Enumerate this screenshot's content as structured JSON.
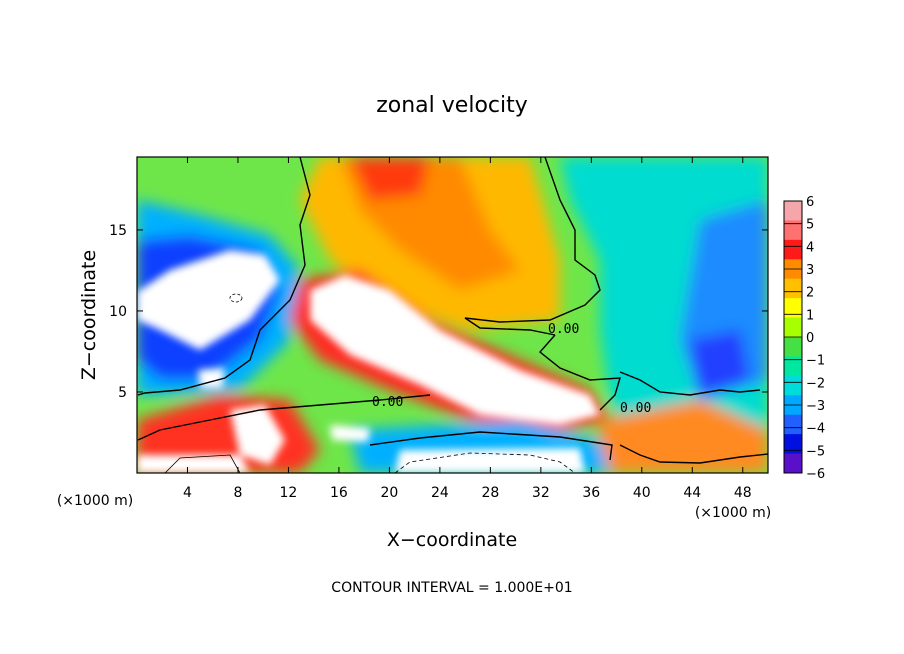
{
  "chart_data": {
    "type": "heatmap",
    "title": "zonal velocity",
    "xlabel": "X−coordinate",
    "ylabel": "Z−coordinate",
    "x_unit_label": "(×1000 m)",
    "x_unit_label_right": "(×1000 m)",
    "xlim": [
      0,
      50
    ],
    "ylim": [
      0,
      19.5
    ],
    "x_ticks": [
      4,
      8,
      12,
      16,
      20,
      24,
      28,
      32,
      36,
      40,
      44,
      48
    ],
    "y_ticks": [
      5,
      10,
      15
    ],
    "colorbar": {
      "range": [
        -6,
        6
      ],
      "ticks": [
        "6",
        "5",
        "4",
        "3",
        "2",
        "1",
        "0",
        "−1",
        "−2",
        "−3",
        "−4",
        "−5",
        "−6"
      ],
      "colors": [
        "#f4a6ab",
        "#ff7070",
        "#ff1a1a",
        "#ff8c00",
        "#ffc000",
        "#ffff00",
        "#a8ff00",
        "#44e044",
        "#00e8a0",
        "#00dcdc",
        "#00a8ff",
        "#2060ff",
        "#0010e0",
        "#5a10c8"
      ]
    },
    "zero_contour_labels": [
      "0.00",
      "0.00",
      "0.00"
    ],
    "footer": "CONTOUR INTERVAL = 1.000E+01"
  }
}
